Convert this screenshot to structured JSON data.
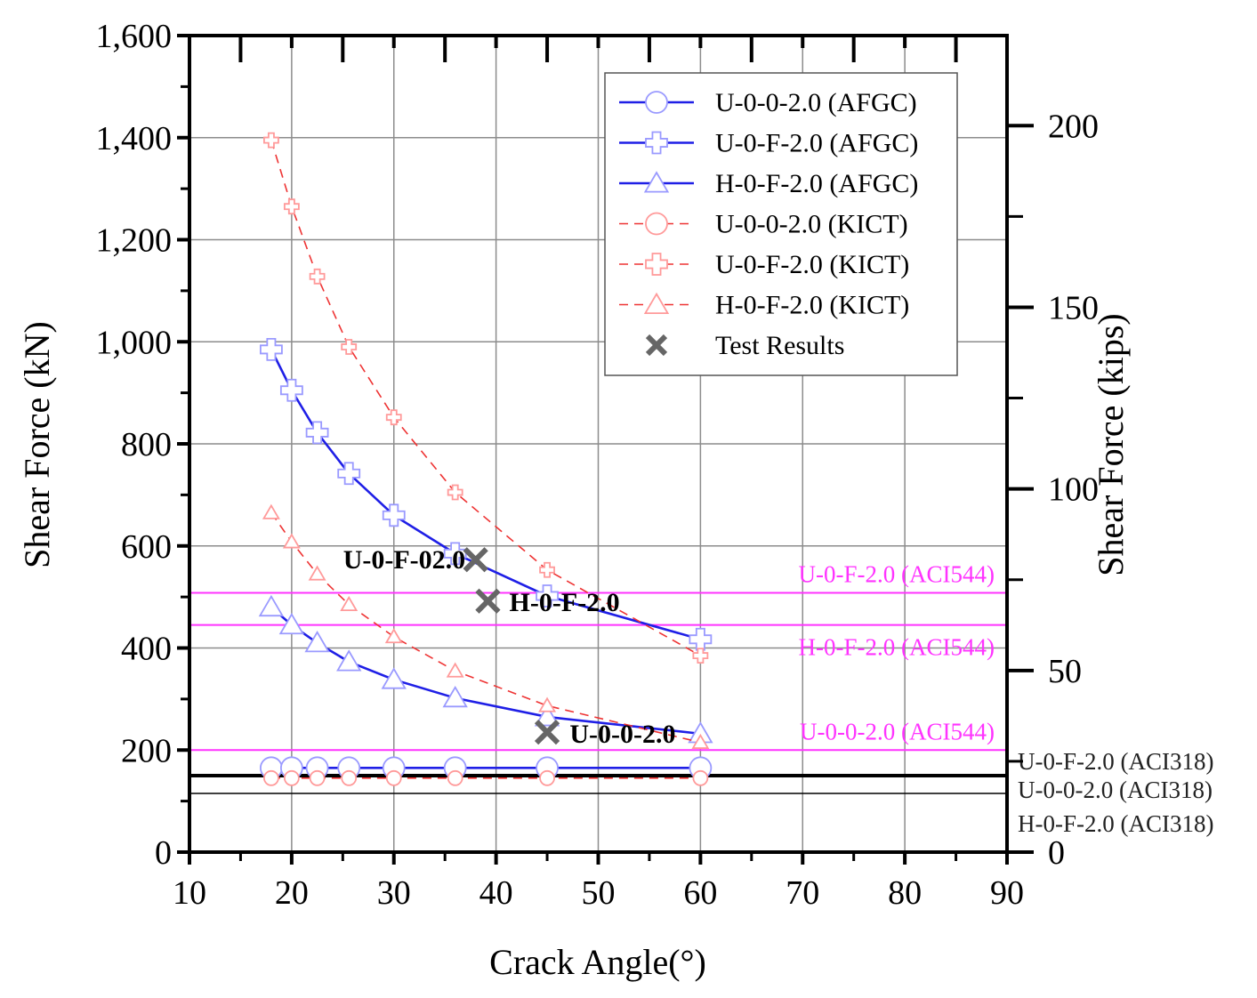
{
  "chart_data": {
    "type": "line",
    "xlabel": "Crack Angle(°)",
    "ylabel": "Shear Force (kN)",
    "y2label": "Shear Force (kips)",
    "xlim": [
      10,
      90
    ],
    "ylim": [
      0,
      1600
    ],
    "y2lim": [
      0,
      224.8
    ],
    "x_ticks": [
      10,
      20,
      30,
      40,
      50,
      60,
      70,
      80,
      90
    ],
    "y_ticks": [
      0,
      200,
      400,
      600,
      800,
      1000,
      1200,
      1400,
      1600
    ],
    "y_tick_labels": [
      "0",
      "200",
      "400",
      "600",
      "800",
      "1,000",
      "1,200",
      "1,400",
      "1,600"
    ],
    "y2_ticks": [
      0,
      50,
      100,
      150,
      200
    ],
    "grid": true,
    "legend_position": "top-right",
    "series": [
      {
        "name": "U-0-0-2.0 (AFGC)",
        "style": "solid",
        "marker": "circle",
        "color": "#1f1fe6",
        "marker_color": "#9a9aff",
        "x": [
          18,
          20,
          22.5,
          25.6,
          30,
          36,
          45,
          60
        ],
        "values": [
          165,
          165,
          165,
          165,
          165,
          165,
          165,
          165
        ]
      },
      {
        "name": "U-0-F-2.0 (AFGC)",
        "style": "solid",
        "marker": "plus",
        "color": "#1f1fe6",
        "marker_color": "#9a9aff",
        "x": [
          18,
          20,
          22.5,
          25.6,
          30,
          36,
          45,
          60
        ],
        "values": [
          985,
          905,
          822,
          742,
          660,
          585,
          502,
          417
        ]
      },
      {
        "name": "H-0-F-2.0 (AFGC)",
        "style": "solid",
        "marker": "triangle",
        "color": "#1f1fe6",
        "marker_color": "#9a9aff",
        "x": [
          18,
          20,
          22.5,
          25.6,
          30,
          36,
          45,
          60
        ],
        "values": [
          480,
          445,
          410,
          373,
          338,
          302,
          265,
          232
        ]
      },
      {
        "name": "U-0-0-2.0 (KICT)",
        "style": "dashed",
        "marker": "circle",
        "color": "#ee3333",
        "marker_color": "#ff9a9a",
        "x": [
          18,
          20,
          22.5,
          25.6,
          30,
          36,
          45,
          60
        ],
        "values": [
          145,
          145,
          145,
          145,
          145,
          145,
          145,
          145
        ]
      },
      {
        "name": "U-0-F-2.0 (KICT)",
        "style": "dashed",
        "marker": "plus",
        "color": "#ee3333",
        "marker_color": "#ff9a9a",
        "x": [
          18,
          20,
          22.5,
          25.6,
          30,
          36,
          45,
          60
        ],
        "values": [
          1395,
          1265,
          1128,
          990,
          852,
          705,
          553,
          385
        ]
      },
      {
        "name": "H-0-F-2.0 (KICT)",
        "style": "dashed",
        "marker": "triangle",
        "color": "#ee3333",
        "marker_color": "#ff9a9a",
        "x": [
          18,
          20,
          22.5,
          25.6,
          30,
          36,
          45,
          60
        ],
        "values": [
          665,
          608,
          545,
          485,
          422,
          355,
          287,
          215
        ]
      },
      {
        "name": "Test Results",
        "style": "none",
        "marker": "x",
        "color": "#666666",
        "marker_color": "#666666",
        "x": [
          38,
          39.2,
          45
        ],
        "values": [
          573,
          492,
          235
        ]
      }
    ],
    "annotations": [
      {
        "text": "U-0-F-02.0",
        "x": 37,
        "y": 573,
        "align": "right"
      },
      {
        "text": "H-0-F-2.0",
        "x": 41.3,
        "y": 490,
        "align": "left"
      },
      {
        "text": "U-0-0-2.0",
        "x": 47.2,
        "y": 232,
        "align": "left"
      }
    ],
    "reference_lines": [
      {
        "label": "U-0-F-2.0 (ACI544)",
        "value": 508,
        "color": "#ff33ff",
        "width": 2
      },
      {
        "label": "H-0-F-2.0 (ACI544)",
        "value": 445,
        "color": "#ff33ff",
        "width": 2
      },
      {
        "label": "U-0-0-2.0 (ACI544)",
        "value": 200,
        "color": "#ff33ff",
        "width": 2
      },
      {
        "label": "U-0-F-2.0 (ACI318)",
        "value": 150,
        "color": "#000000",
        "width": 4
      },
      {
        "label": "U-0-0-2.0 (ACI318)",
        "value": 150,
        "color": "#000000",
        "width": 4
      },
      {
        "label": "H-0-F-2.0 (ACI318)",
        "value": 115,
        "color": "#000000",
        "width": 1.5
      }
    ]
  }
}
